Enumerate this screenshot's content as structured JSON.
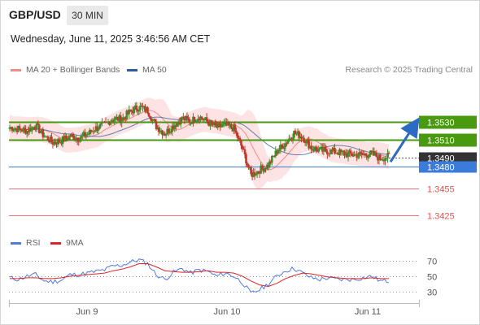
{
  "header": {
    "pair": "GBP/USD",
    "timeframe": "30 MIN",
    "datetime": "Wednesday, June 11, 2025 3:46:56 AM CET"
  },
  "legend": {
    "bollinger": "MA 20 + Bollinger Bands",
    "ma50": "MA 50",
    "copyright": "Research © 2025 Trading Central"
  },
  "rsi_legend": {
    "rsi": "RSI",
    "ma9": "9MA"
  },
  "colors": {
    "resistance": "#4a9a10",
    "support_blue": "#3b7bd9",
    "support_red": "#e15554",
    "bollinger_fill": "#fde3e3",
    "ma20": "#f28a8a",
    "ma50": "#2f5b9b",
    "candle_up": "#3f8f2a",
    "candle_down": "#c0392b",
    "rsi": "#4f7be0",
    "rsi_ma": "#d9262a",
    "current_price_bg": "#333333",
    "arrow": "#2c6bc4"
  },
  "chart_data": {
    "type": "candlestick",
    "price_levels": [
      {
        "value": 1.353,
        "label": "1.3530",
        "kind": "resistance"
      },
      {
        "value": 1.351,
        "label": "1.3510",
        "kind": "resistance"
      },
      {
        "value": 1.349,
        "label": "1.3490",
        "kind": "current"
      },
      {
        "value": 1.348,
        "label": "1.3480",
        "kind": "pivot"
      },
      {
        "value": 1.3455,
        "label": "1.3455",
        "kind": "support"
      },
      {
        "value": 1.3425,
        "label": "1.3425",
        "kind": "support"
      }
    ],
    "y_range": [
      1.3409,
      1.3576
    ],
    "x_labels": [
      "Jun 9",
      "Jun 10",
      "Jun 11"
    ],
    "price_path": [
      1.3524,
      1.3522,
      1.352,
      1.3526,
      1.3514,
      1.3507,
      1.3509,
      1.3514,
      1.3512,
      1.3516,
      1.3523,
      1.3527,
      1.3534,
      1.3533,
      1.3542,
      1.3547,
      1.3543,
      1.3525,
      1.3517,
      1.3526,
      1.3534,
      1.3531,
      1.3536,
      1.353,
      1.3524,
      1.3526,
      1.3523,
      1.35,
      1.347,
      1.3476,
      1.3481,
      1.3497,
      1.3506,
      1.3518,
      1.3513,
      1.3501,
      1.3498,
      1.3497,
      1.3496,
      1.3494,
      1.3493,
      1.3493,
      1.3494,
      1.3489,
      1.3491
    ],
    "rsi_axis": [
      70,
      50,
      30
    ],
    "rsi_range": [
      20,
      81
    ],
    "rsi": [
      48,
      46,
      50,
      52,
      44,
      43,
      45,
      52,
      52,
      54,
      56,
      58,
      63,
      64,
      68,
      71,
      66,
      52,
      46,
      55,
      60,
      54,
      58,
      56,
      50,
      54,
      50,
      42,
      28,
      33,
      40,
      50,
      57,
      60,
      54,
      48,
      46,
      48,
      46,
      46,
      46,
      48,
      50,
      44,
      44
    ],
    "rsi_ma": [
      47,
      47,
      48,
      48,
      47,
      47,
      48,
      50,
      51,
      52,
      53,
      54,
      57,
      59,
      62,
      66,
      66,
      62,
      57,
      56,
      55,
      55,
      56,
      57,
      55,
      55,
      54,
      50,
      44,
      39,
      37,
      41,
      47,
      51,
      54,
      53,
      51,
      49,
      48,
      47,
      47,
      47,
      48,
      47,
      47
    ]
  }
}
